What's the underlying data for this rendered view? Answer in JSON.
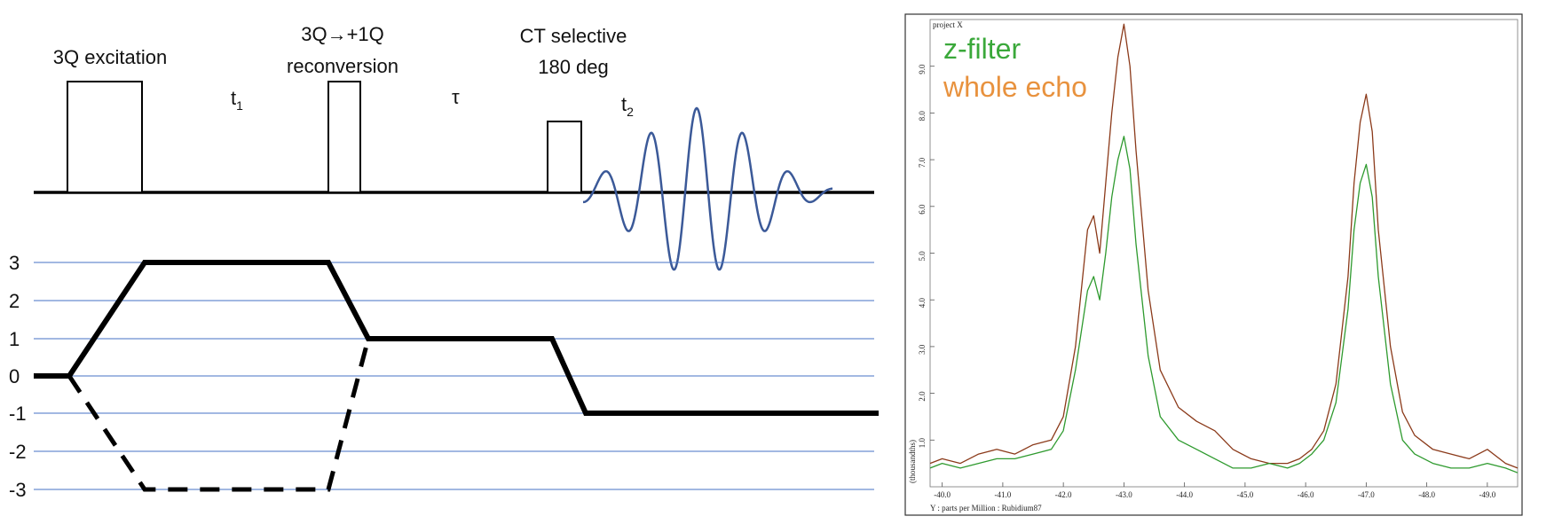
{
  "pulse_sequence": {
    "labels": {
      "excitation": "3Q excitation",
      "reconversion_line1": "3Q→+1Q",
      "reconversion_line2": "reconversion",
      "ct_line1": "CT selective",
      "ct_line2": "180 deg",
      "t1": "t",
      "t1_sub": "1",
      "tau": "τ",
      "t2": "t",
      "t2_sub": "2"
    },
    "coherence_levels": [
      "3",
      "2",
      "1",
      "0",
      "-1",
      "-2",
      "-3"
    ],
    "colors": {
      "pulse": "#000000",
      "fid": "#3b5998",
      "level_lines": "#4472c4",
      "pathway": "#000000"
    }
  },
  "spectrum": {
    "project_label": "project X",
    "y_axis_label": "(thousandths)",
    "x_axis_label": "Y : parts per Million : Rubidium87",
    "legend": [
      {
        "name": "z-filter",
        "color": "#3aa83a"
      },
      {
        "name": "whole echo",
        "color": "#e8923e"
      }
    ],
    "colors": {
      "whole_echo_line": "#8b3a1a",
      "z_filter_line": "#2e9a2e",
      "frame": "#333333"
    }
  },
  "chart_data": {
    "type": "line",
    "xlabel": "Y : parts per Million : Rubidium87",
    "ylabel": "(thousandths)",
    "x_reversed": true,
    "xlim": [
      -39.8,
      -49.5
    ],
    "ylim": [
      0,
      100
    ],
    "x_ticks": [
      "-40.0",
      "-41.0",
      "-42.0",
      "-43.0",
      "-44.0",
      "-45.0",
      "-46.0",
      "-47.0",
      "-48.0",
      "-49.0"
    ],
    "y_ticks": [
      "1.0",
      "2.0",
      "3.0",
      "4.0",
      "5.0",
      "6.0",
      "7.0",
      "8.0",
      "9.0"
    ],
    "x": [
      -39.8,
      -40.0,
      -40.3,
      -40.6,
      -40.9,
      -41.2,
      -41.5,
      -41.8,
      -42.0,
      -42.2,
      -42.4,
      -42.5,
      -42.6,
      -42.7,
      -42.8,
      -42.9,
      -43.0,
      -43.1,
      -43.2,
      -43.4,
      -43.6,
      -43.9,
      -44.2,
      -44.5,
      -44.8,
      -45.1,
      -45.4,
      -45.7,
      -45.9,
      -46.1,
      -46.3,
      -46.5,
      -46.7,
      -46.8,
      -46.9,
      -47.0,
      -47.1,
      -47.2,
      -47.4,
      -47.6,
      -47.8,
      -48.1,
      -48.4,
      -48.7,
      -49.0,
      -49.3,
      -49.5
    ],
    "series": [
      {
        "name": "whole echo",
        "values": [
          5,
          6,
          5,
          7,
          8,
          7,
          9,
          10,
          15,
          30,
          55,
          58,
          50,
          65,
          80,
          92,
          99,
          90,
          72,
          42,
          25,
          17,
          14,
          12,
          8,
          6,
          5,
          5,
          6,
          8,
          12,
          22,
          45,
          65,
          78,
          84,
          76,
          55,
          30,
          16,
          11,
          8,
          7,
          6,
          8,
          5,
          4
        ]
      },
      {
        "name": "z-filter",
        "values": [
          4,
          5,
          4,
          5,
          6,
          6,
          7,
          8,
          12,
          25,
          42,
          45,
          40,
          50,
          62,
          70,
          75,
          68,
          52,
          28,
          15,
          10,
          8,
          6,
          4,
          4,
          5,
          4,
          5,
          7,
          10,
          18,
          38,
          55,
          65,
          69,
          62,
          45,
          22,
          10,
          7,
          5,
          4,
          4,
          5,
          4,
          3
        ]
      }
    ]
  }
}
